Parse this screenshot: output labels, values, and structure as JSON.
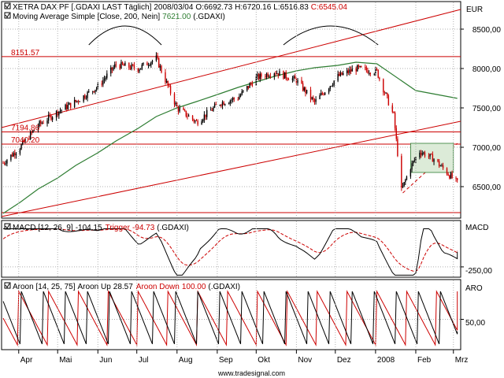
{
  "header": {
    "symbol": "XETRA DAX PF [.GDAXI LAST Täglich]",
    "date": "2008/03/04",
    "open": "O:6692.73",
    "high": "H:6720.16",
    "low": "L:6516.83",
    "close": "C:6545.04",
    "ma_label": "Moving Average Simple [Close, 200, Nein]",
    "ma_value": "7621.00",
    "ma_symbol": "(.GDAXI)"
  },
  "colors": {
    "price": "#000000",
    "negative": "#cc0000",
    "moving_average": "#2e7d32",
    "trendline": "#cc0000",
    "consolidation_fill": "#dcebd8",
    "grid": "#b0b0b0",
    "aroon_up": "#000000",
    "aroon_down": "#cc0000"
  },
  "price_axis": {
    "unit": "EUR",
    "ticks": [
      "8500,00",
      "8000,00",
      "7500,00",
      "7000,00",
      "6500,00"
    ]
  },
  "levels": [
    {
      "value": 8151.57,
      "label": "8151.57"
    },
    {
      "value": 7194.86,
      "label": "7194.86"
    },
    {
      "value": 7040.2,
      "label": "7040.20"
    },
    {
      "value": 6170,
      "label": ""
    }
  ],
  "macd": {
    "label": "MACD [12, 26, 9]",
    "value": "-104.15",
    "trigger_label": "Trigger",
    "trigger_value": "-94.73",
    "symbol": "(.GDAXI)",
    "axis_title": "MACD",
    "axis_tick": "-250,00"
  },
  "aroon": {
    "label": "Aroon [14, 25, 75]",
    "up_label": "Aroon Up",
    "up_value": "28.57",
    "down_label": "Aroon Down",
    "down_value": "100.00",
    "symbol": "(.GDAXI)",
    "axis_title": "ARO",
    "axis_tick": "50,00"
  },
  "x_axis": {
    "months": [
      "Apr",
      "Mai",
      "Jun",
      "Jul",
      "Aug",
      "Sep",
      "Okt",
      "Nov",
      "Dez",
      "2008",
      "Feb",
      "Mrz"
    ]
  },
  "watermark": "www.tradesignal.com",
  "chart_data": {
    "type": "line",
    "title": "XETRA DAX PF [.GDAXI LAST Täglich]",
    "xlabel": "",
    "ylabel": "EUR",
    "ylim": [
      6100,
      8850
    ],
    "x": [
      "2007-03-20",
      "2007-04-02",
      "2007-04-16",
      "2007-05-01",
      "2007-05-15",
      "2007-06-01",
      "2007-06-15",
      "2007-07-02",
      "2007-07-16",
      "2007-08-01",
      "2007-08-16",
      "2007-09-03",
      "2007-09-17",
      "2007-10-01",
      "2007-10-15",
      "2007-11-01",
      "2007-11-15",
      "2007-12-03",
      "2007-12-17",
      "2008-01-02",
      "2008-01-08",
      "2008-01-15",
      "2008-01-21",
      "2008-01-28",
      "2008-02-04",
      "2008-02-15",
      "2008-03-04"
    ],
    "series": [
      {
        "name": "",
        "values": [
          6800,
          7000,
          7280,
          7450,
          7580,
          7770,
          8050,
          8000,
          8130,
          7500,
          7320,
          7560,
          7630,
          7880,
          7960,
          7850,
          7570,
          7900,
          8000,
          7960,
          7700,
          7400,
          6450,
          6750,
          6950,
          6850,
          6545
        ]
      },
      {
        "name": "Moving Average Simple [Close, 200, Nein]",
        "values": [
          6160,
          6300,
          6470,
          6610,
          6770,
          6930,
          7080,
          7240,
          7390,
          7500,
          7580,
          7680,
          7760,
          7830,
          7900,
          7970,
          8010,
          8040,
          8080,
          null,
          null,
          null,
          null,
          null,
          null,
          null,
          7621
        ]
      }
    ],
    "indicators": {
      "macd": {
        "value": -104.15,
        "trigger": -94.73,
        "reference_level": -250
      },
      "aroon": {
        "up": 28.57,
        "down": 100.0,
        "reference_level": 50
      }
    },
    "grid": true,
    "legend": "top-left"
  }
}
